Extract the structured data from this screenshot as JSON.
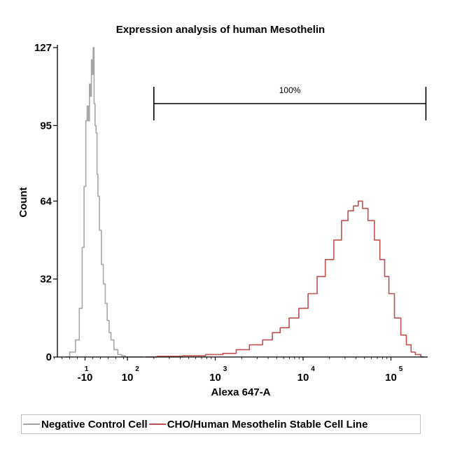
{
  "chart_data": {
    "type": "histogram",
    "title": "Expression analysis of human Mesothelin",
    "xlabel": "Alexa 647-A",
    "ylabel": "Count",
    "y_ticks": [
      "0",
      "32",
      "64",
      "95",
      "127"
    ],
    "ylim": [
      0,
      127
    ],
    "x_scale": "biexponential",
    "x_ticks": [
      {
        "base": "-10",
        "exp": "1"
      },
      {
        "base": "10",
        "exp": "2"
      },
      {
        "base": "10",
        "exp": "3"
      },
      {
        "base": "10",
        "exp": "4"
      },
      {
        "base": "10",
        "exp": "5"
      }
    ],
    "gate": {
      "label": "100%",
      "from": 200,
      "to": 250000
    },
    "legend_position": "bottom",
    "series": [
      {
        "name": "Negative Control Cell",
        "color": "#a6a6a6",
        "x": [
          -60,
          -40,
          -30,
          -20,
          -15,
          -10,
          -6,
          -3,
          0,
          3,
          5,
          8,
          10,
          12,
          15,
          17,
          20,
          22,
          25,
          30,
          35,
          40,
          45,
          50,
          55,
          60,
          70,
          80,
          90,
          100,
          120,
          150
        ],
        "y": [
          0,
          2,
          7,
          20,
          45,
          70,
          97,
          103,
          97,
          112,
          107,
          122,
          116,
          127,
          104,
          95,
          92,
          75,
          66,
          52,
          38,
          30,
          22,
          15,
          10,
          7,
          3,
          1,
          0.5,
          0,
          0,
          0
        ]
      },
      {
        "name": "CHO/Human Mesothelin Stable Cell Line",
        "color": "#c0504d",
        "x": [
          160,
          300,
          600,
          1000,
          1500,
          2000,
          3000,
          4000,
          5000,
          6000,
          8000,
          10000,
          13000,
          16000,
          20000,
          25000,
          30000,
          35000,
          40000,
          45000,
          50000,
          60000,
          70000,
          80000,
          90000,
          100000,
          120000,
          140000,
          160000,
          180000,
          200000,
          240000
        ],
        "y": [
          0,
          0.3,
          0.5,
          1,
          1.5,
          3,
          5,
          7,
          10,
          12,
          16,
          20,
          26,
          33,
          40,
          48,
          56,
          60,
          62,
          64,
          61,
          56,
          48,
          40,
          33,
          26,
          16,
          9,
          5,
          2,
          1,
          0
        ]
      }
    ]
  }
}
